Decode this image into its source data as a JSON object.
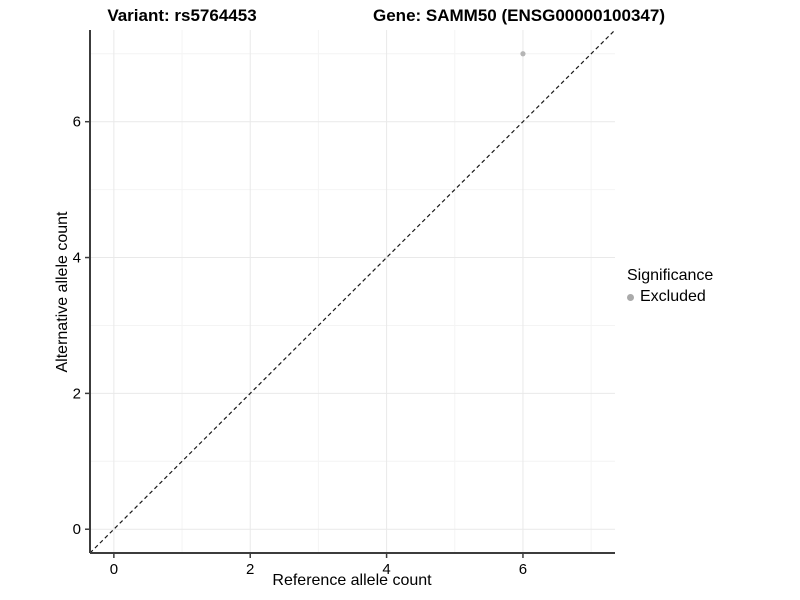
{
  "chart_data": {
    "type": "scatter",
    "titles": {
      "left": "Variant: rs5764453",
      "right": "Gene: SAMM50 (ENSG00000100347)"
    },
    "xlabel": "Reference allele count",
    "ylabel": "Alternative allele count",
    "xlim": [
      -0.35,
      7.35
    ],
    "ylim": [
      -0.35,
      7.35
    ],
    "x_ticks": [
      0,
      2,
      4,
      6
    ],
    "y_ticks": [
      0,
      2,
      4,
      6
    ],
    "x_minor_ticks": [
      1,
      3,
      5,
      7
    ],
    "y_minor_ticks": [
      1,
      3,
      5,
      7
    ],
    "grid": "on",
    "series": [
      {
        "name": "Excluded",
        "color": "#b5b5b5",
        "points": [
          {
            "x": 6,
            "y": 7
          }
        ]
      }
    ],
    "reference_line": {
      "slope": 1,
      "intercept": 0,
      "style": "dashed",
      "color": "#1a1a1a"
    },
    "legend": {
      "title": "Significance",
      "position": "right",
      "entries": [
        {
          "label": "Excluded",
          "color": "#aaaaaa"
        }
      ]
    },
    "colors": {
      "background": "#ffffff",
      "axis_line": "#3c3c3c",
      "tick": "#3c3c3c",
      "grid_major": "#e9e9e9",
      "grid_minor": "#f4f4f4",
      "text": "#000000"
    }
  }
}
